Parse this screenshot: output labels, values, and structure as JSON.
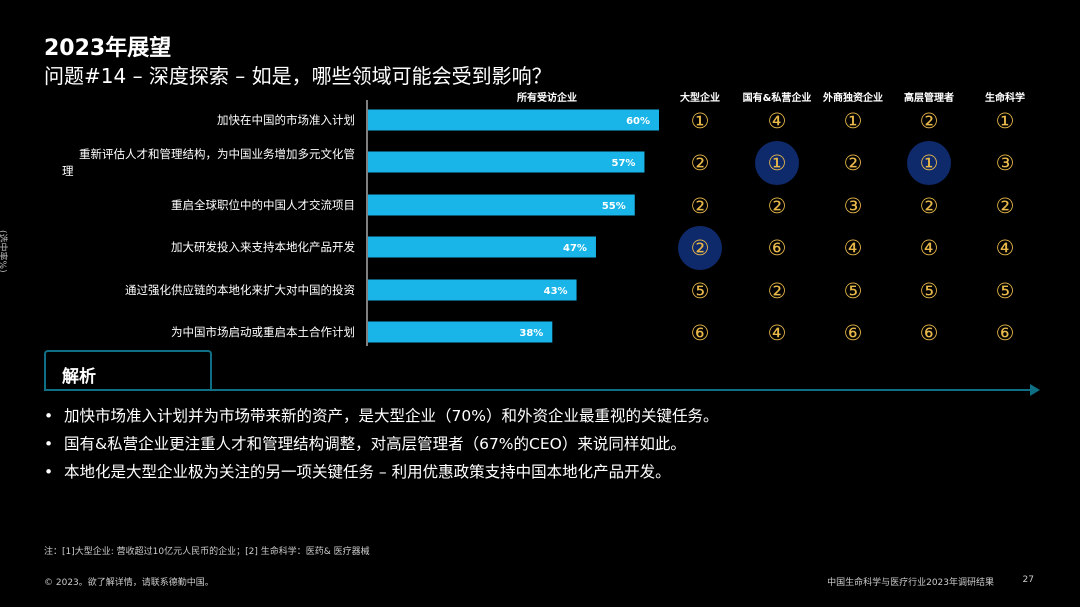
{
  "header": {
    "title": "2023年展望",
    "subtitle": "问题#14 – 深度探索 – 如是，哪些领域可能会受到影响？"
  },
  "y_note": "(选中率%)",
  "colors": {
    "bar": "#19b5e8",
    "rank_text": "#e8b84a",
    "highlight_circle": "#0f2a6b",
    "accent_line": "#0f6f85"
  },
  "chart_data": {
    "type": "bar",
    "orientation": "horizontal",
    "categories": [
      "加快在中国的市场准入计划",
      "重新评估人才和管理结构，为中国业务增加多元文化管理",
      "重启全球职位中的中国人才交流项目",
      "加大研发投入来支持本地化产品开发",
      "通过强化供应链的本地化来扩大对中国的投资",
      "为中国市场启动或重启本土合作计划"
    ],
    "category_lines": [
      [
        "加快在中国的市场准入计划"
      ],
      [
        "重新评估人才和管理结构，为中国业务增加多元文化管",
        "理"
      ],
      [
        "重启全球职位中的中国人才交流项目"
      ],
      [
        "加大研发投入来支持本地化产品开发"
      ],
      [
        "通过强化供应链的本地化来扩大对中国的投资"
      ],
      [
        "为中国市场启动或重启本土合作计划"
      ]
    ],
    "series": [
      {
        "name": "所有受访企业",
        "values": [
          60,
          57,
          55,
          47,
          43,
          38
        ]
      }
    ],
    "data_labels": [
      "60%",
      "57%",
      "55%",
      "47%",
      "43%",
      "38%"
    ],
    "xlim": [
      0,
      100
    ],
    "rank_table": {
      "columns": [
        "大型企业",
        "国有&私营企业",
        "外商独资企业",
        "高层管理者",
        "生命科学"
      ],
      "ranks": [
        [
          "①",
          "④",
          "①",
          "②",
          "①"
        ],
        [
          "②",
          "①",
          "②",
          "①",
          "③"
        ],
        [
          "②",
          "②",
          "③",
          "②",
          "②"
        ],
        [
          "②",
          "⑥",
          "④",
          "④",
          "④"
        ],
        [
          "⑤",
          "②",
          "⑤",
          "⑤",
          "⑤"
        ],
        [
          "⑥",
          "④",
          "⑥",
          "⑥",
          "⑥"
        ]
      ],
      "highlighted": [
        [
          1,
          1
        ],
        [
          1,
          3
        ],
        [
          3,
          0
        ]
      ]
    }
  },
  "analysis": {
    "label": "解析",
    "bullets": [
      "加快市场准入计划并为市场带来新的资产，是大型企业（70%）和外资企业最重视的关键任务。",
      "国有&私营企业更注重人才和管理结构调整，对高层管理者（67%的CEO）来说同样如此。",
      "本地化是大型企业极为关注的另一项关键任务 – 利用优惠政策支持中国本地化产品开发。"
    ]
  },
  "footer": {
    "note": "注：[1]大型企业: 营收超过10亿元人民币的企业；[2] 生命科学：医药& 医疗器械",
    "copyright": "© 2023。欲了解详情，请联系德勤中国。",
    "report_title": "中国生命科学与医疗行业2023年调研结果",
    "page": "27"
  }
}
